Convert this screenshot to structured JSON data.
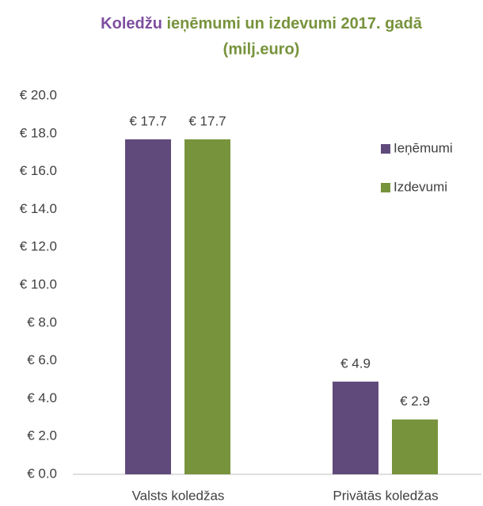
{
  "chart_data": {
    "type": "bar",
    "title": [
      "Koledžu",
      "ieņēmumi un izdevumi 2017. gadā",
      "(milj.euro)"
    ],
    "categories": [
      "Valsts koledžas",
      "Privātās koledžas"
    ],
    "series": [
      {
        "name": "Ieņēmumi",
        "color": "#604a7b",
        "values": [
          17.7,
          4.9
        ],
        "value_labels": [
          "€ 17.7",
          "€ 4.9"
        ]
      },
      {
        "name": "Izdevumi",
        "color": "#77933c",
        "values": [
          17.7,
          2.9
        ],
        "value_labels": [
          "€ 17.7",
          "€ 2.9"
        ]
      }
    ],
    "ylim": [
      0,
      20
    ],
    "yticks": [
      {
        "value": 0,
        "label": "€ 0.0"
      },
      {
        "value": 2,
        "label": "€ 2.0"
      },
      {
        "value": 4,
        "label": "€ 4.0"
      },
      {
        "value": 6,
        "label": "€ 6.0"
      },
      {
        "value": 8,
        "label": "€ 8.0"
      },
      {
        "value": 10,
        "label": "€ 10.0"
      },
      {
        "value": 12,
        "label": "€ 12.0"
      },
      {
        "value": 14,
        "label": "€ 14.0"
      },
      {
        "value": 16,
        "label": "€ 16.0"
      },
      {
        "value": 18,
        "label": "€ 18.0"
      },
      {
        "value": 20,
        "label": "€ 20.0"
      }
    ],
    "grid": false,
    "legend": "right",
    "title_colors": [
      "#7e4fa0",
      "#77933c"
    ]
  }
}
